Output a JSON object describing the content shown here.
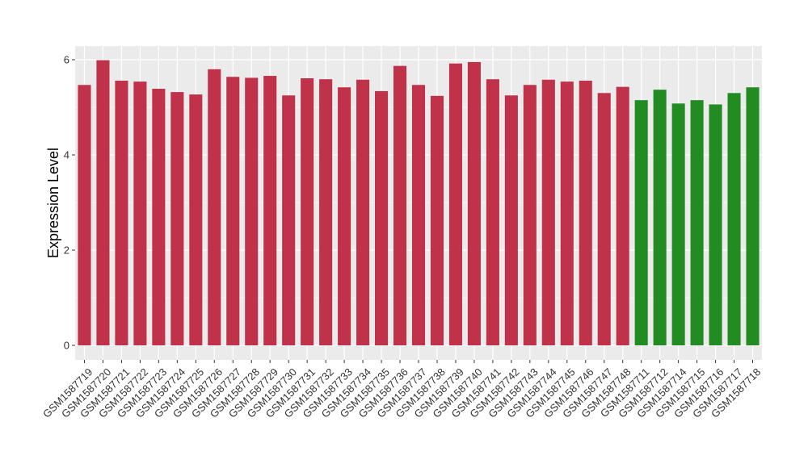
{
  "chart_data": {
    "type": "bar",
    "ylabel": "Expression Level",
    "xlabel": "",
    "ylim": [
      -0.25,
      6.25
    ],
    "y_ticks": [
      0,
      2,
      4,
      6
    ],
    "grid": true,
    "panel_background": "#ebebeb",
    "grid_color": "#ffffff",
    "categories": [
      "GSM1587719",
      "GSM1587720",
      "GSM1587721",
      "GSM1587722",
      "GSM1587723",
      "GSM1587724",
      "GSM1587725",
      "GSM1587726",
      "GSM1587727",
      "GSM1587728",
      "GSM1587729",
      "GSM1587730",
      "GSM1587731",
      "GSM1587732",
      "GSM1587733",
      "GSM1587734",
      "GSM1587735",
      "GSM1587736",
      "GSM1587737",
      "GSM1587738",
      "GSM1587739",
      "GSM1587740",
      "GSM1587741",
      "GSM1587742",
      "GSM1587743",
      "GSM1587744",
      "GSM1587745",
      "GSM1587746",
      "GSM1587747",
      "GSM1587748",
      "GSM1587711",
      "GSM1587712",
      "GSM1587714",
      "GSM1587715",
      "GSM1587716",
      "GSM1587717",
      "GSM1587718"
    ],
    "values": [
      5.47,
      5.99,
      5.56,
      5.54,
      5.39,
      5.32,
      5.27,
      5.8,
      5.64,
      5.62,
      5.66,
      5.25,
      5.61,
      5.59,
      5.42,
      5.58,
      5.34,
      5.87,
      5.47,
      5.24,
      5.92,
      5.95,
      5.59,
      5.25,
      5.47,
      5.58,
      5.54,
      5.56,
      5.3,
      5.43,
      5.15,
      5.37,
      5.08,
      5.15,
      5.06,
      5.3,
      5.42
    ],
    "bar_colors": [
      "#c0314a",
      "#c0314a",
      "#c0314a",
      "#c0314a",
      "#c0314a",
      "#c0314a",
      "#c0314a",
      "#c0314a",
      "#c0314a",
      "#c0314a",
      "#c0314a",
      "#c0314a",
      "#c0314a",
      "#c0314a",
      "#c0314a",
      "#c0314a",
      "#c0314a",
      "#c0314a",
      "#c0314a",
      "#c0314a",
      "#c0314a",
      "#c0314a",
      "#c0314a",
      "#c0314a",
      "#c0314a",
      "#c0314a",
      "#c0314a",
      "#c0314a",
      "#c0314a",
      "#c0314a",
      "#228b22",
      "#228b22",
      "#228b22",
      "#228b22",
      "#228b22",
      "#228b22",
      "#228b22"
    ]
  }
}
